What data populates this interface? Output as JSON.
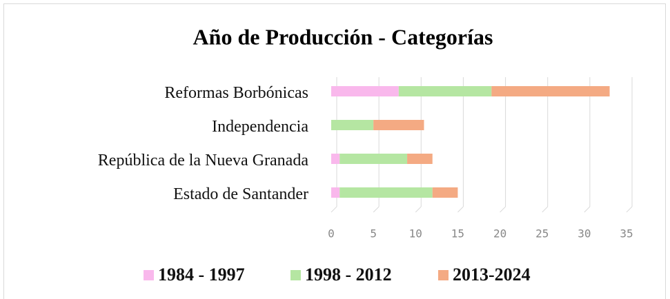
{
  "chart_data": {
    "type": "stacked-bar-horizontal",
    "title": "Año de Producción - Categorías",
    "categories": [
      "Estado de Santander",
      "República de la Nueva Granada",
      "Independencia",
      "Reformas Borbónicas"
    ],
    "series": [
      {
        "name": "1984 - 1997",
        "color": "#f9b8ec",
        "values": [
          1,
          1,
          0,
          8
        ]
      },
      {
        "name": "1998 - 2012",
        "color": "#b5e6a2",
        "values": [
          11,
          8,
          5,
          11
        ]
      },
      {
        "name": "2013-2024",
        "color": "#f4aa83",
        "values": [
          3,
          3,
          6,
          14
        ]
      }
    ],
    "xlim": [
      0,
      35
    ],
    "xticks": [
      0,
      5,
      10,
      15,
      20,
      25,
      30,
      35
    ],
    "grid": true,
    "legend": "bottom"
  }
}
